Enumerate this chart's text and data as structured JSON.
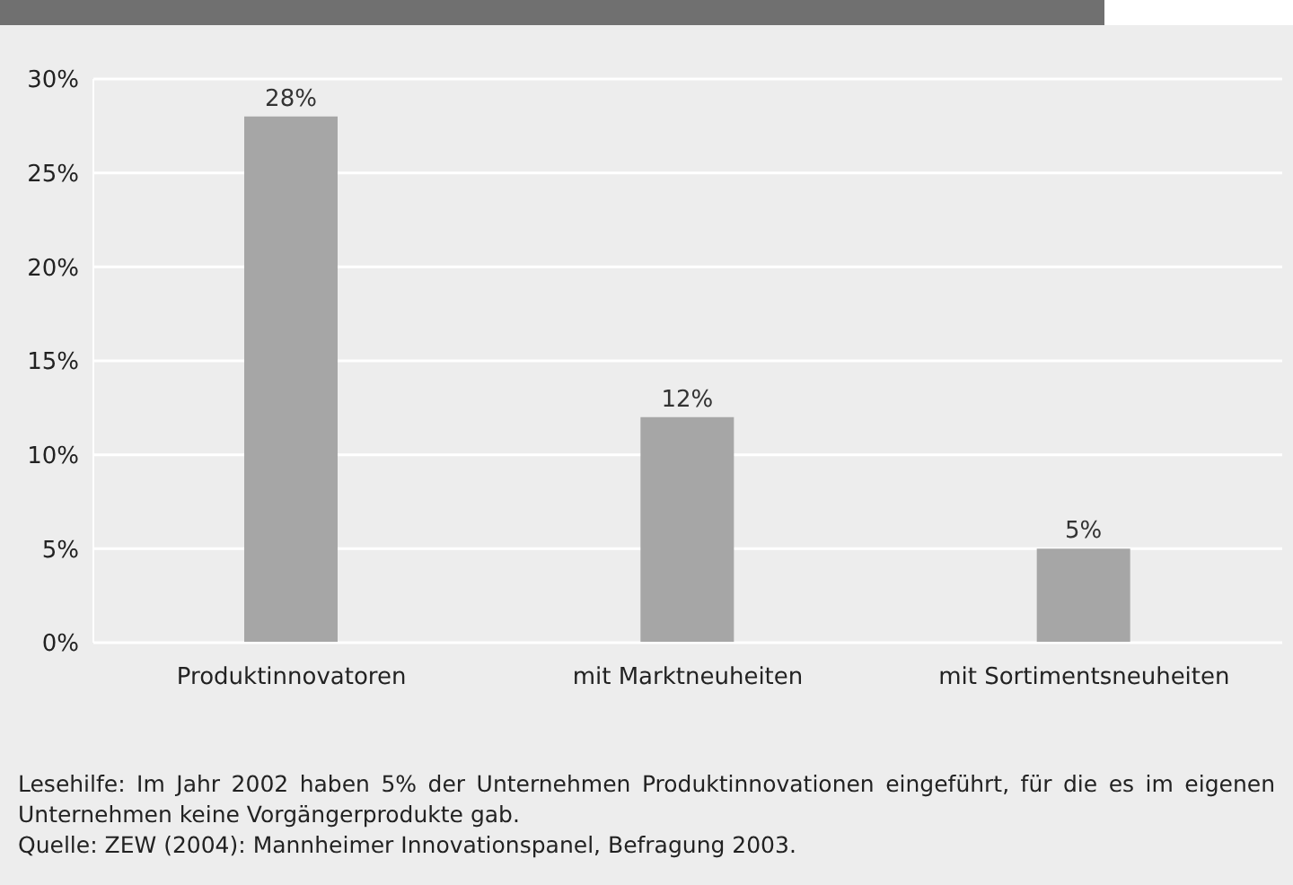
{
  "chart_data": {
    "type": "bar",
    "categories": [
      "Produktinnovatoren",
      "mit Marktneuheiten",
      "mit Sortimentsneuheiten"
    ],
    "values": [
      28,
      12,
      5
    ],
    "value_labels": [
      "28%",
      "12%",
      "5%"
    ],
    "color": "#a6a6a6",
    "ylim": [
      0,
      30
    ],
    "yticks": [
      {
        "value": 0,
        "label": "0%"
      },
      {
        "value": 5,
        "label": "5%"
      },
      {
        "value": 10,
        "label": "10%"
      },
      {
        "value": 15,
        "label": "15%"
      },
      {
        "value": 20,
        "label": "20%"
      },
      {
        "value": 25,
        "label": "25%"
      },
      {
        "value": 30,
        "label": "30%"
      }
    ],
    "grid": "y",
    "legend": false,
    "annotations": [
      "Lesehilfe: Im Jahr 2002 haben 5% der Unternehmen Produktinnovationen eingeführt, für die es im eigenen Unternehmen keine Vorgängerprodukte gab.",
      "Quelle: ZEW (2004): Mannheimer Innovationspanel, Befragung 2003."
    ]
  }
}
